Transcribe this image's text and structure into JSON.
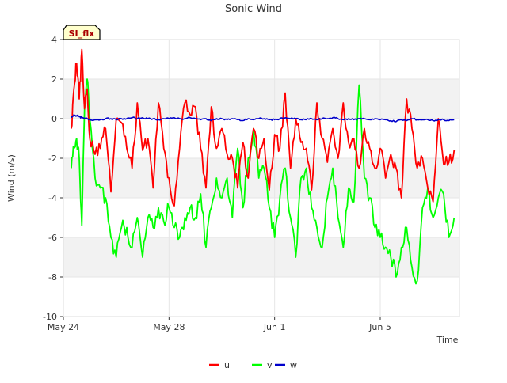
{
  "chart_data": {
    "type": "line",
    "title": "Sonic Wind",
    "badge": "SI_flx",
    "xlabel": "Time",
    "ylabel": "Wind (m/s)",
    "xlim": [
      0,
      15
    ],
    "ylim": [
      -10,
      4
    ],
    "grid": true,
    "legend_position": "bottom-center",
    "x_ticks": [
      {
        "value": 0,
        "label": "May 24"
      },
      {
        "value": 4,
        "label": "May 28"
      },
      {
        "value": 8,
        "label": "Jun 1"
      },
      {
        "value": 12,
        "label": "Jun 5"
      }
    ],
    "y_ticks": [
      -10,
      -8,
      -6,
      -4,
      -2,
      0,
      2,
      4
    ],
    "x": [
      0.3,
      0.4,
      0.5,
      0.6,
      0.7,
      0.8,
      0.9,
      1.0,
      1.2,
      1.4,
      1.6,
      1.8,
      2.0,
      2.2,
      2.4,
      2.6,
      2.8,
      3.0,
      3.2,
      3.4,
      3.6,
      3.8,
      4.0,
      4.2,
      4.4,
      4.6,
      4.8,
      5.0,
      5.2,
      5.4,
      5.6,
      5.8,
      6.0,
      6.2,
      6.4,
      6.6,
      6.8,
      7.0,
      7.2,
      7.4,
      7.6,
      7.8,
      8.0,
      8.2,
      8.4,
      8.6,
      8.8,
      9.0,
      9.2,
      9.4,
      9.6,
      9.8,
      10.0,
      10.2,
      10.4,
      10.6,
      10.8,
      11.0,
      11.2,
      11.4,
      11.6,
      11.8,
      12.0,
      12.2,
      12.4,
      12.6,
      12.8,
      13.0,
      13.2,
      13.4,
      13.6,
      13.8,
      14.0,
      14.2,
      14.4,
      14.6,
      14.8
    ],
    "series": [
      {
        "name": "u",
        "color": "#ff0000",
        "values": [
          -0.5,
          1.5,
          2.8,
          1.0,
          3.5,
          0.5,
          1.5,
          -1.0,
          -1.8,
          -1.5,
          -0.5,
          -3.7,
          0.0,
          -0.2,
          -1.5,
          -2.5,
          0.8,
          -1.6,
          -1.0,
          -3.5,
          0.8,
          -1.5,
          -3.0,
          -4.4,
          -1.5,
          0.8,
          0.2,
          0.6,
          -1.5,
          -3.5,
          0.6,
          -1.5,
          -0.5,
          -1.8,
          -2.0,
          -3.5,
          -1.2,
          -3.0,
          -0.5,
          -2.0,
          -1.0,
          -3.6,
          -0.8,
          -1.5,
          1.3,
          -2.5,
          0.0,
          -1.2,
          -1.5,
          -3.6,
          0.8,
          -1.0,
          -2.2,
          -0.5,
          -2.0,
          0.8,
          -1.2,
          -1.0,
          -2.5,
          -0.5,
          -1.5,
          -2.5,
          -1.5,
          -3.0,
          -1.8,
          -2.5,
          -4.0,
          1.0,
          -0.5,
          -2.5,
          -2.0,
          -3.5,
          -4.2,
          0.0,
          -2.3,
          -2.2,
          -1.6
        ]
      },
      {
        "name": "v",
        "color": "#00ff00",
        "values": [
          -2.5,
          -1.5,
          -1.0,
          -2.0,
          -5.4,
          0.5,
          2.0,
          0.0,
          -3.0,
          -3.5,
          -4.0,
          -6.0,
          -7.0,
          -5.5,
          -5.5,
          -6.5,
          -5.0,
          -7.0,
          -5.0,
          -5.5,
          -4.5,
          -5.2,
          -4.5,
          -5.5,
          -6.0,
          -5.0,
          -4.5,
          -5.0,
          -3.8,
          -6.5,
          -4.5,
          -3.0,
          -4.0,
          -3.0,
          -5.0,
          -1.5,
          -4.5,
          -2.0,
          -0.5,
          -3.0,
          -2.5,
          -4.5,
          -6.0,
          -4.0,
          -2.5,
          -5.0,
          -7.0,
          -3.0,
          -2.5,
          -4.5,
          -5.5,
          -6.5,
          -4.0,
          -2.5,
          -5.0,
          -6.5,
          -3.5,
          -4.2,
          1.7,
          -3.0,
          -4.0,
          -5.5,
          -6.0,
          -6.5,
          -7.0,
          -8.0,
          -6.5,
          -5.5,
          -7.5,
          -8.2,
          -4.5,
          -3.5,
          -5.0,
          -4.0,
          -3.8,
          -6.0,
          -5.0
        ]
      },
      {
        "name": "w",
        "color": "#0000cc",
        "values": [
          0.05,
          0.2,
          0.15,
          0.1,
          0.05,
          0.0,
          0.0,
          -0.05,
          -0.05,
          -0.05,
          0.0,
          0.0,
          -0.05,
          0.0,
          0.0,
          0.05,
          0.0,
          0.05,
          0.0,
          0.0,
          -0.05,
          0.0,
          0.0,
          0.05,
          0.0,
          0.0,
          0.05,
          0.0,
          -0.05,
          0.0,
          -0.1,
          0.0,
          0.0,
          -0.05,
          0.0,
          -0.05,
          -0.1,
          0.0,
          -0.05,
          0.0,
          0.0,
          -0.05,
          -0.05,
          0.0,
          0.05,
          0.0,
          0.0,
          -0.05,
          -0.05,
          0.0,
          -0.05,
          0.0,
          0.0,
          0.05,
          0.0,
          -0.05,
          0.0,
          -0.05,
          0.0,
          0.0,
          -0.05,
          0.0,
          -0.05,
          -0.05,
          -0.1,
          -0.15,
          -0.05,
          -0.1,
          0.0,
          -0.05,
          -0.05,
          -0.05,
          -0.1,
          -0.05,
          -0.05,
          -0.1,
          -0.05
        ]
      }
    ]
  }
}
